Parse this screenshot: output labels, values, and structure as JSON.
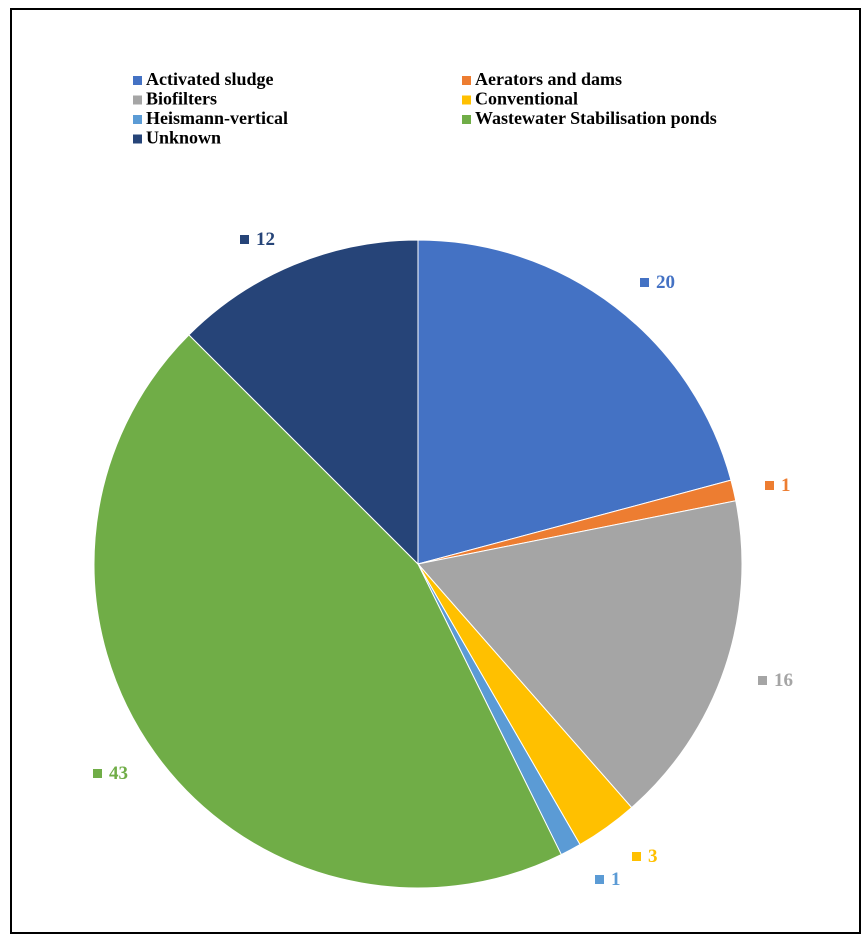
{
  "chart_data": {
    "type": "pie",
    "title": "",
    "legend_position": "top",
    "legend_columns": 2,
    "start_angle_deg": 0,
    "direction": "clockwise",
    "show_data_labels": true,
    "categories": [
      "Activated sludge",
      "Aerators and dams",
      "Biofilters",
      "Conventional",
      "Heismann-vertical",
      "Wastewater Stabilisation ponds",
      "Unknown"
    ],
    "values": [
      20,
      1,
      16,
      3,
      1,
      43,
      12
    ],
    "colors": [
      "#4472C4",
      "#ED7D31",
      "#A5A5A5",
      "#FFC000",
      "#5B9BD5",
      "#70AD47",
      "#264478"
    ]
  }
}
